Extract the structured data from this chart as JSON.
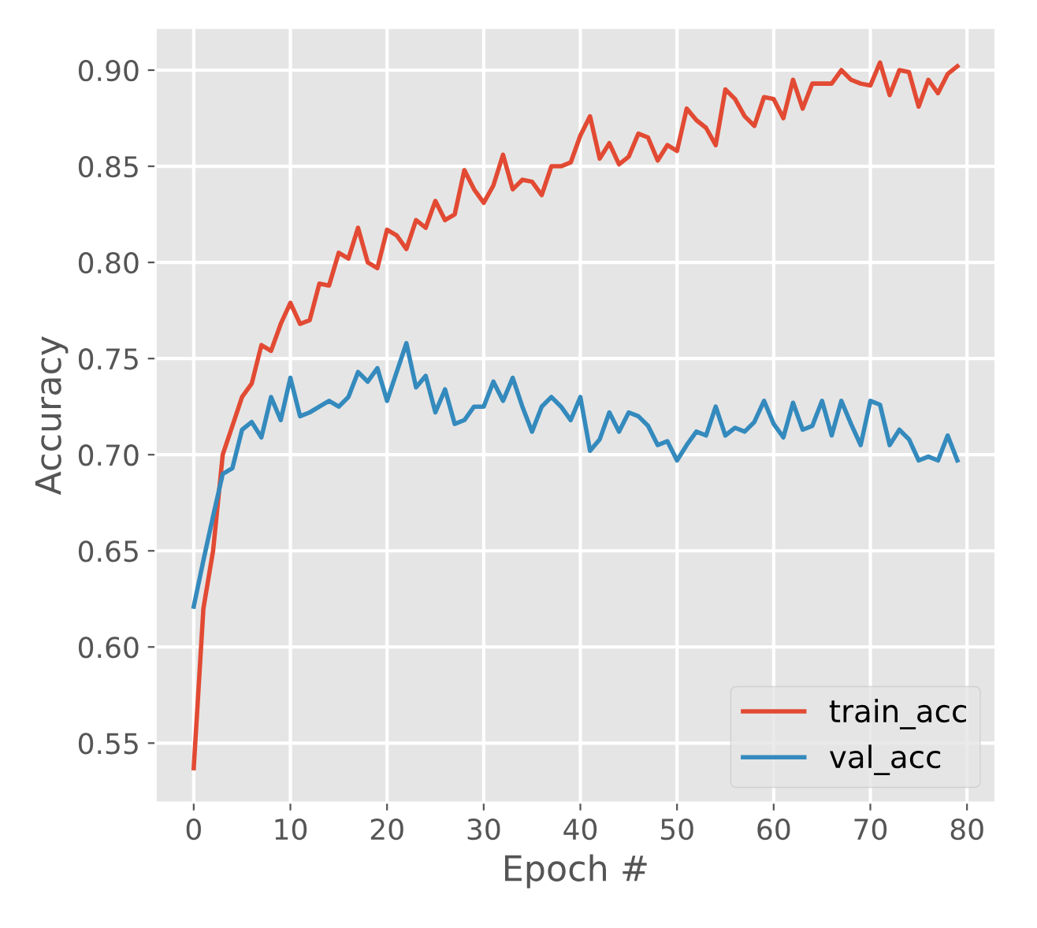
{
  "chart_data": {
    "type": "line",
    "xlabel": "Epoch #",
    "ylabel": "Accuracy",
    "x": [
      0,
      1,
      2,
      3,
      4,
      5,
      6,
      7,
      8,
      9,
      10,
      11,
      12,
      13,
      14,
      15,
      16,
      17,
      18,
      19,
      20,
      21,
      22,
      23,
      24,
      25,
      26,
      27,
      28,
      29,
      30,
      31,
      32,
      33,
      34,
      35,
      36,
      37,
      38,
      39,
      40,
      41,
      42,
      43,
      44,
      45,
      46,
      47,
      48,
      49,
      50,
      51,
      52,
      53,
      54,
      55,
      56,
      57,
      58,
      59,
      60,
      61,
      62,
      63,
      64,
      65,
      66,
      67,
      68,
      69,
      70,
      71,
      72,
      73,
      74,
      75,
      76,
      77,
      78,
      79
    ],
    "series": [
      {
        "name": "train_acc",
        "color": "#e24a33",
        "values": [
          0.537,
          0.62,
          0.65,
          0.7,
          0.715,
          0.73,
          0.737,
          0.757,
          0.754,
          0.768,
          0.779,
          0.768,
          0.77,
          0.789,
          0.788,
          0.805,
          0.802,
          0.818,
          0.8,
          0.797,
          0.817,
          0.814,
          0.807,
          0.822,
          0.818,
          0.832,
          0.822,
          0.825,
          0.848,
          0.838,
          0.831,
          0.84,
          0.856,
          0.838,
          0.843,
          0.842,
          0.835,
          0.85,
          0.85,
          0.852,
          0.866,
          0.876,
          0.854,
          0.862,
          0.851,
          0.855,
          0.867,
          0.865,
          0.853,
          0.861,
          0.858,
          0.88,
          0.874,
          0.87,
          0.861,
          0.89,
          0.885,
          0.876,
          0.871,
          0.886,
          0.885,
          0.875,
          0.895,
          0.88,
          0.893,
          0.893,
          0.893,
          0.9,
          0.895,
          0.893,
          0.892,
          0.904,
          0.887,
          0.9,
          0.899,
          0.881,
          0.895,
          0.888,
          0.898,
          0.902
        ]
      },
      {
        "name": "val_acc",
        "color": "#348abd",
        "values": [
          0.621,
          0.645,
          0.668,
          0.69,
          0.693,
          0.713,
          0.717,
          0.709,
          0.73,
          0.718,
          0.74,
          0.72,
          0.722,
          0.725,
          0.728,
          0.725,
          0.73,
          0.743,
          0.738,
          0.745,
          0.728,
          0.743,
          0.758,
          0.735,
          0.741,
          0.722,
          0.734,
          0.716,
          0.718,
          0.725,
          0.725,
          0.738,
          0.728,
          0.74,
          0.725,
          0.712,
          0.725,
          0.73,
          0.725,
          0.718,
          0.73,
          0.702,
          0.708,
          0.722,
          0.712,
          0.722,
          0.72,
          0.715,
          0.705,
          0.707,
          0.697,
          0.705,
          0.712,
          0.71,
          0.725,
          0.71,
          0.714,
          0.712,
          0.717,
          0.728,
          0.716,
          0.709,
          0.727,
          0.713,
          0.715,
          0.728,
          0.71,
          0.728,
          0.716,
          0.705,
          0.728,
          0.726,
          0.705,
          0.713,
          0.708,
          0.697,
          0.699,
          0.697,
          0.71,
          0.697
        ]
      }
    ],
    "xlim": [
      -3.95,
      82.95
    ],
    "xticks": [
      0,
      10,
      20,
      30,
      40,
      50,
      60,
      70,
      80
    ],
    "ylim": [
      0.519,
      0.922
    ],
    "yticks": [
      {
        "value": 0.55,
        "label": "0.55"
      },
      {
        "value": 0.6,
        "label": "0.60"
      },
      {
        "value": 0.65,
        "label": "0.65"
      },
      {
        "value": 0.7,
        "label": "0.70"
      },
      {
        "value": 0.75,
        "label": "0.75"
      },
      {
        "value": 0.8,
        "label": "0.80"
      },
      {
        "value": 0.85,
        "label": "0.85"
      },
      {
        "value": 0.9,
        "label": "0.90"
      }
    ],
    "grid": true,
    "legend": "bottom right",
    "marker": "none",
    "line_style": "solid"
  }
}
